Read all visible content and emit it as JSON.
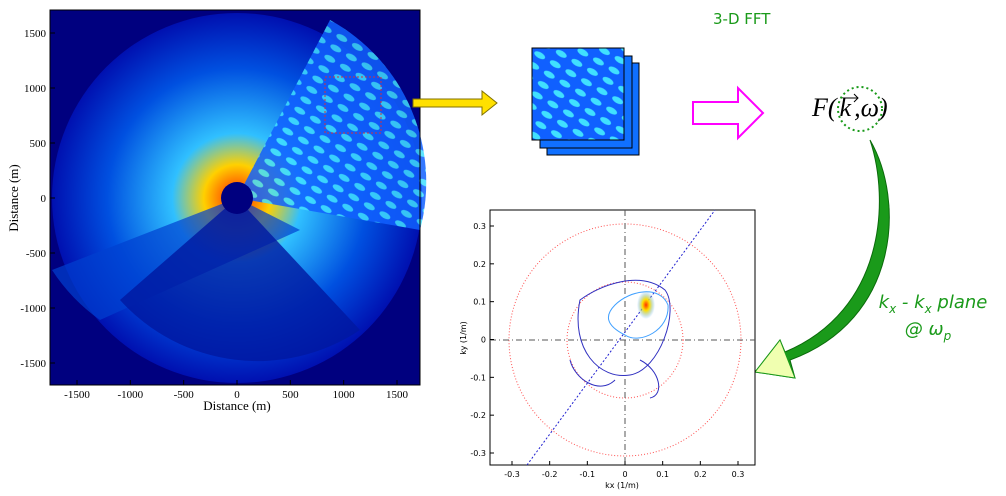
{
  "radar": {
    "x_axis_label": "Distance (m)",
    "y_axis_label": "Distance (m)",
    "x_ticks": [
      -1500,
      -1000,
      -500,
      0,
      500,
      1000,
      1500
    ],
    "y_ticks": [
      1500,
      1000,
      500,
      0,
      -500,
      -1000,
      -1500
    ]
  },
  "fft_label": "3-D FFT",
  "formula": {
    "prefix": "F(",
    "vector": "k",
    "suffix": ",ω)"
  },
  "plane_label": {
    "line1": [
      {
        "text": "k"
      },
      {
        "sub": "x"
      },
      {
        "text": " - k"
      },
      {
        "sub": "x"
      },
      {
        "text": " plane"
      }
    ],
    "line2": [
      {
        "text": "@ ω"
      },
      {
        "sub": "p"
      }
    ]
  },
  "spectrum": {
    "x_axis_label": "kx (1/m)",
    "y_axis_label": "ky (1/m)",
    "x_ticks": [
      -0.3,
      -0.2,
      -0.1,
      0,
      0.1,
      0.2,
      0.3
    ],
    "y_ticks": [
      0.3,
      0.2,
      0.1,
      0,
      -0.1,
      -0.2,
      -0.3
    ]
  }
}
